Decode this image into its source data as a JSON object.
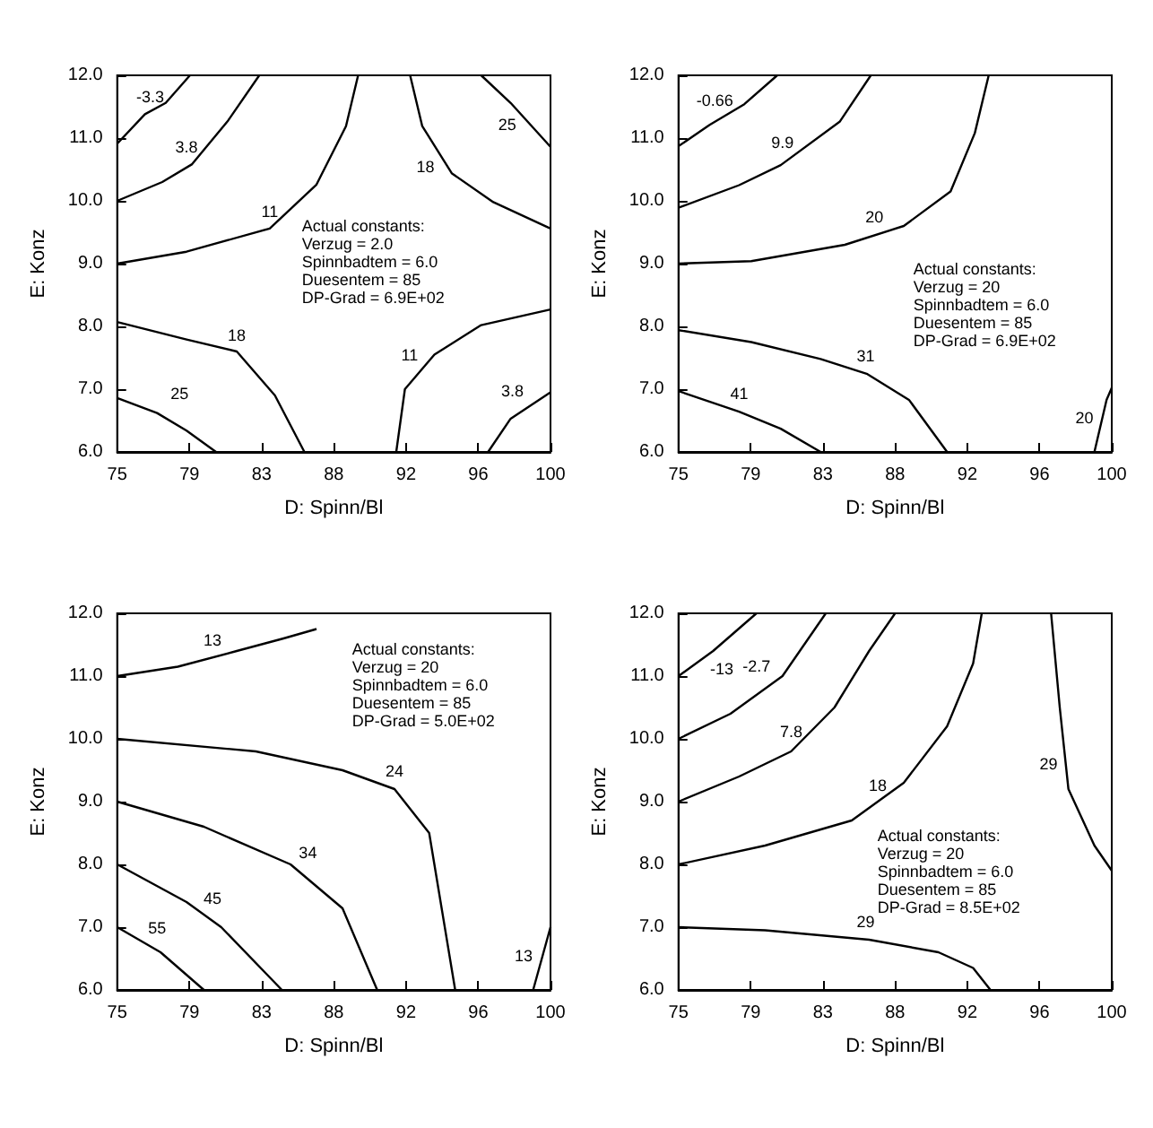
{
  "chart_data": [
    {
      "type": "line",
      "xlabel": "D: Spinn/Bl",
      "ylabel": "E: Konz",
      "xlim": [
        75,
        100
      ],
      "ylim": [
        6,
        12
      ],
      "xticks": [
        {
          "value": 75,
          "label": "75"
        },
        {
          "value": 79.17,
          "label": "79"
        },
        {
          "value": 83.33,
          "label": "83"
        },
        {
          "value": 87.5,
          "label": "88"
        },
        {
          "value": 91.67,
          "label": "92"
        },
        {
          "value": 95.83,
          "label": "96"
        },
        {
          "value": 100,
          "label": "100"
        }
      ],
      "yticks": [
        {
          "value": 6,
          "label": "6.0"
        },
        {
          "value": 7,
          "label": "7.0"
        },
        {
          "value": 8,
          "label": "8.0"
        },
        {
          "value": 9,
          "label": "9.0"
        },
        {
          "value": 10,
          "label": "10.0"
        },
        {
          "value": 11,
          "label": "11.0"
        },
        {
          "value": 12,
          "label": "12.0"
        }
      ],
      "grid": false,
      "marker": "none",
      "line_style": "solid",
      "series": [
        {
          "color": "#000000",
          "x": [
            75,
            76.6,
            77.8,
            79.2
          ],
          "values": [
            10.91,
            11.38,
            11.56,
            12
          ]
        },
        {
          "color": "#000000",
          "x": [
            75,
            77.6,
            79.3,
            81.4,
            83.2
          ],
          "values": [
            10,
            10.3,
            10.58,
            11.28,
            12
          ]
        },
        {
          "color": "#000000",
          "x": [
            75,
            79,
            83.8,
            86.5,
            88.2,
            88.9
          ],
          "values": [
            9,
            9.19,
            9.56,
            10.26,
            11.19,
            12
          ]
        },
        {
          "color": "#000000",
          "x": [
            91.9,
            92.6,
            94.3,
            96.7,
            100
          ],
          "values": [
            12,
            11.19,
            10.44,
            9.98,
            9.56
          ]
        },
        {
          "color": "#000000",
          "x": [
            96,
            97.7,
            100
          ],
          "values": [
            12,
            11.56,
            10.86
          ]
        },
        {
          "color": "#000000",
          "x": [
            75,
            79,
            81.9,
            84.1,
            85.8
          ],
          "values": [
            8.07,
            7.79,
            7.6,
            6.9,
            6
          ]
        },
        {
          "color": "#000000",
          "x": [
            75,
            77.3,
            79,
            80.7
          ],
          "values": [
            6.86,
            6.62,
            6.34,
            6
          ]
        },
        {
          "color": "#000000",
          "x": [
            91.1,
            91.6,
            93.3,
            96,
            100
          ],
          "values": [
            6,
            7,
            7.55,
            8.02,
            8.27
          ]
        },
        {
          "color": "#000000",
          "x": [
            96.4,
            97.7,
            100
          ],
          "values": [
            6,
            6.53,
            6.95
          ]
        }
      ],
      "annotations": [
        {
          "text": "-3.3",
          "x": 76.9,
          "y": 11.33
        },
        {
          "text": "3.8",
          "x": 79,
          "y": 10.53
        },
        {
          "text": "11",
          "x": 83.8,
          "y": 9.56
        },
        {
          "text": "18",
          "x": 94.1,
          "y": 10.55
        },
        {
          "text": "25",
          "x": 97.5,
          "y": 11.61
        },
        {
          "text": "18",
          "x": 81.9,
          "y": 7.6
        },
        {
          "text": "25",
          "x": 78.6,
          "y": 6.6
        },
        {
          "text": "11",
          "x": 93.3,
          "y": 7.55
        },
        {
          "text": "3.8",
          "x": 97.8,
          "y": 6.62
        },
        "Actual constants:",
        "Verzug = 2.0",
        "Spinnbadtem = 6.0",
        "Duesentem = 85",
        "DP-Grad = 6.9E+02"
      ]
    },
    {
      "type": "line",
      "xlabel": "D: Spinn/Bl",
      "ylabel": "E: Konz",
      "xlim": [
        75,
        100
      ],
      "ylim": [
        6,
        12
      ],
      "xticks": [
        {
          "value": 75,
          "label": "75"
        },
        {
          "value": 79.17,
          "label": "79"
        },
        {
          "value": 83.33,
          "label": "83"
        },
        {
          "value": 87.5,
          "label": "88"
        },
        {
          "value": 91.67,
          "label": "92"
        },
        {
          "value": 95.83,
          "label": "96"
        },
        {
          "value": 100,
          "label": "100"
        }
      ],
      "yticks": [
        {
          "value": 6,
          "label": "6.0"
        },
        {
          "value": 7,
          "label": "7.0"
        },
        {
          "value": 8,
          "label": "8.0"
        },
        {
          "value": 9,
          "label": "9.0"
        },
        {
          "value": 10,
          "label": "10.0"
        },
        {
          "value": 11,
          "label": "11.0"
        },
        {
          "value": 12,
          "label": "12.0"
        }
      ],
      "grid": false,
      "marker": "none",
      "line_style": "solid",
      "series": [
        {
          "color": "#000000",
          "x": [
            75,
            76.8,
            78.8,
            80.7
          ],
          "values": [
            10.87,
            11.21,
            11.54,
            12
          ]
        },
        {
          "color": "#000000",
          "x": [
            75,
            78.5,
            80.9,
            84.3,
            86.1
          ],
          "values": [
            9.89,
            10.25,
            10.57,
            11.26,
            12
          ]
        },
        {
          "color": "#000000",
          "x": [
            75,
            79.2,
            84.6,
            88,
            90.7,
            92.1,
            92.9
          ],
          "values": [
            9,
            9.04,
            9.3,
            9.6,
            10.15,
            11.08,
            12
          ]
        },
        {
          "color": "#000000",
          "x": [
            75,
            79.2,
            83.2,
            85.9,
            88.3,
            90.5
          ],
          "values": [
            7.94,
            7.75,
            7.48,
            7.24,
            6.83,
            6
          ]
        },
        {
          "color": "#000000",
          "x": [
            75,
            78.5,
            80.9,
            83.2
          ],
          "values": [
            6.97,
            6.64,
            6.37,
            6
          ]
        },
        {
          "color": "#000000",
          "x": [
            99,
            99.7,
            100
          ],
          "values": [
            6,
            6.83,
            7.02
          ]
        }
      ],
      "annotations": [
        {
          "text": "-0.66",
          "x": 77.1,
          "y": 11.26
        },
        {
          "text": "9.9",
          "x": 81,
          "y": 10.57
        },
        {
          "text": "20",
          "x": 86.3,
          "y": 9.46
        },
        {
          "text": "31",
          "x": 85.8,
          "y": 7.25
        },
        {
          "text": "41",
          "x": 78.5,
          "y": 6.64
        },
        {
          "text": "20",
          "x": 99.5,
          "y": 6.55
        },
        "Actual constants:",
        "Verzug = 20",
        "Spinnbadtem = 6.0",
        "Duesentem = 85",
        "DP-Grad = 6.9E+02"
      ]
    },
    {
      "type": "line",
      "xlabel": "D: Spinn/Bl",
      "ylabel": "E: Konz",
      "xlim": [
        75,
        100
      ],
      "ylim": [
        6,
        12
      ],
      "xticks": [
        {
          "value": 75,
          "label": "75"
        },
        {
          "value": 79.17,
          "label": "79"
        },
        {
          "value": 83.33,
          "label": "83"
        },
        {
          "value": 87.5,
          "label": "88"
        },
        {
          "value": 91.67,
          "label": "92"
        },
        {
          "value": 95.83,
          "label": "96"
        },
        {
          "value": 100,
          "label": "100"
        }
      ],
      "yticks": [
        {
          "value": 6,
          "label": "6.0"
        },
        {
          "value": 7,
          "label": "7.0"
        },
        {
          "value": 8,
          "label": "8.0"
        },
        {
          "value": 9,
          "label": "9.0"
        },
        {
          "value": 10,
          "label": "10.0"
        },
        {
          "value": 11,
          "label": "11.0"
        },
        {
          "value": 12,
          "label": "12.0"
        }
      ],
      "grid": false,
      "marker": "none",
      "line_style": "solid",
      "series": [
        {
          "color": "#000000",
          "x": [
            75,
            78.5,
            81.9,
            84.6,
            86.5
          ],
          "values": [
            11,
            11.15,
            11.4,
            11.6,
            11.75
          ]
        },
        {
          "color": "#000000",
          "x": [
            75,
            83,
            88,
            91,
            93,
            94.5
          ],
          "values": [
            10,
            9.8,
            9.5,
            9.2,
            8.5,
            6
          ]
        },
        {
          "color": "#000000",
          "x": [
            75,
            80,
            85,
            88,
            90
          ],
          "values": [
            9,
            8.6,
            8,
            7.3,
            6
          ]
        },
        {
          "color": "#000000",
          "x": [
            75,
            79,
            81,
            84.5
          ],
          "values": [
            8,
            7.4,
            7,
            6
          ]
        },
        {
          "color": "#000000",
          "x": [
            75,
            77.5,
            80
          ],
          "values": [
            7,
            6.6,
            6
          ]
        },
        {
          "color": "#000000",
          "x": [
            99,
            100
          ],
          "values": [
            6,
            7
          ]
        }
      ],
      "annotations": [
        {
          "text": "13",
          "x": 80.5,
          "y": 11.3
        },
        {
          "text": "24",
          "x": 91,
          "y": 9.2
        },
        {
          "text": "34",
          "x": 86,
          "y": 7.8
        },
        {
          "text": "45",
          "x": 80.5,
          "y": 7.1
        },
        {
          "text": "55",
          "x": 77.3,
          "y": 6.65
        },
        {
          "text": "13",
          "x": 99.55,
          "y": 6.55
        },
        "Actual constants:",
        "Verzug = 20",
        "Spinnbadtem = 6.0",
        "Duesentem = 85",
        "DP-Grad = 5.0E+02"
      ]
    },
    {
      "type": "line",
      "xlabel": "D: Spinn/Bl",
      "ylabel": "E: Konz",
      "xlim": [
        75,
        100
      ],
      "ylim": [
        6,
        12
      ],
      "xticks": [
        {
          "value": 75,
          "label": "75"
        },
        {
          "value": 79.17,
          "label": "79"
        },
        {
          "value": 83.33,
          "label": "83"
        },
        {
          "value": 87.5,
          "label": "88"
        },
        {
          "value": 91.67,
          "label": "92"
        },
        {
          "value": 95.83,
          "label": "96"
        },
        {
          "value": 100,
          "label": "100"
        }
      ],
      "yticks": [
        {
          "value": 6,
          "label": "6.0"
        },
        {
          "value": 7,
          "label": "7.0"
        },
        {
          "value": 8,
          "label": "8.0"
        },
        {
          "value": 9,
          "label": "9.0"
        },
        {
          "value": 10,
          "label": "10.0"
        },
        {
          "value": 11,
          "label": "11.0"
        },
        {
          "value": 12,
          "label": "12.0"
        }
      ],
      "grid": false,
      "marker": "none",
      "line_style": "solid",
      "series": [
        {
          "color": "#000000",
          "x": [
            75,
            77,
            79.5
          ],
          "values": [
            11,
            11.4,
            12
          ]
        },
        {
          "color": "#000000",
          "x": [
            75,
            78,
            81,
            83.5
          ],
          "values": [
            10,
            10.4,
            11,
            12
          ]
        },
        {
          "color": "#000000",
          "x": [
            75,
            78.5,
            81.5,
            84,
            86,
            87.5
          ],
          "values": [
            9,
            9.4,
            9.8,
            10.5,
            11.4,
            12
          ]
        },
        {
          "color": "#000000",
          "x": [
            75,
            80,
            85,
            88,
            90.5,
            92,
            92.5
          ],
          "values": [
            8,
            8.3,
            8.7,
            9.3,
            10.2,
            11.2,
            12
          ]
        },
        {
          "color": "#000000",
          "x": [
            75,
            80,
            86,
            90,
            92,
            93
          ],
          "values": [
            7,
            6.95,
            6.8,
            6.6,
            6.35,
            6
          ]
        },
        {
          "color": "#000000",
          "x": [
            96.5,
            97,
            97.5,
            99,
            100
          ],
          "values": [
            12,
            10.5,
            9.2,
            8.3,
            7.9
          ]
        }
      ],
      "annotations": [
        {
          "text": "-13",
          "x": 77.5,
          "y": 11.5
        },
        {
          "text": "-2.7",
          "x": 79.5,
          "y": 10.8
        },
        {
          "text": "7.8",
          "x": 81.5,
          "y": 9.8
        },
        {
          "text": "18",
          "x": 86.5,
          "y": 8.9
        },
        {
          "text": "29",
          "x": 85.8,
          "y": 6.85
        },
        {
          "text": "29",
          "x": 97.35,
          "y": 9.6
        },
        "Actual constants:",
        "Verzug = 20",
        "Spinnbadtem = 6.0",
        "Duesentem = 85",
        "DP-Grad = 8.5E+02"
      ]
    }
  ]
}
